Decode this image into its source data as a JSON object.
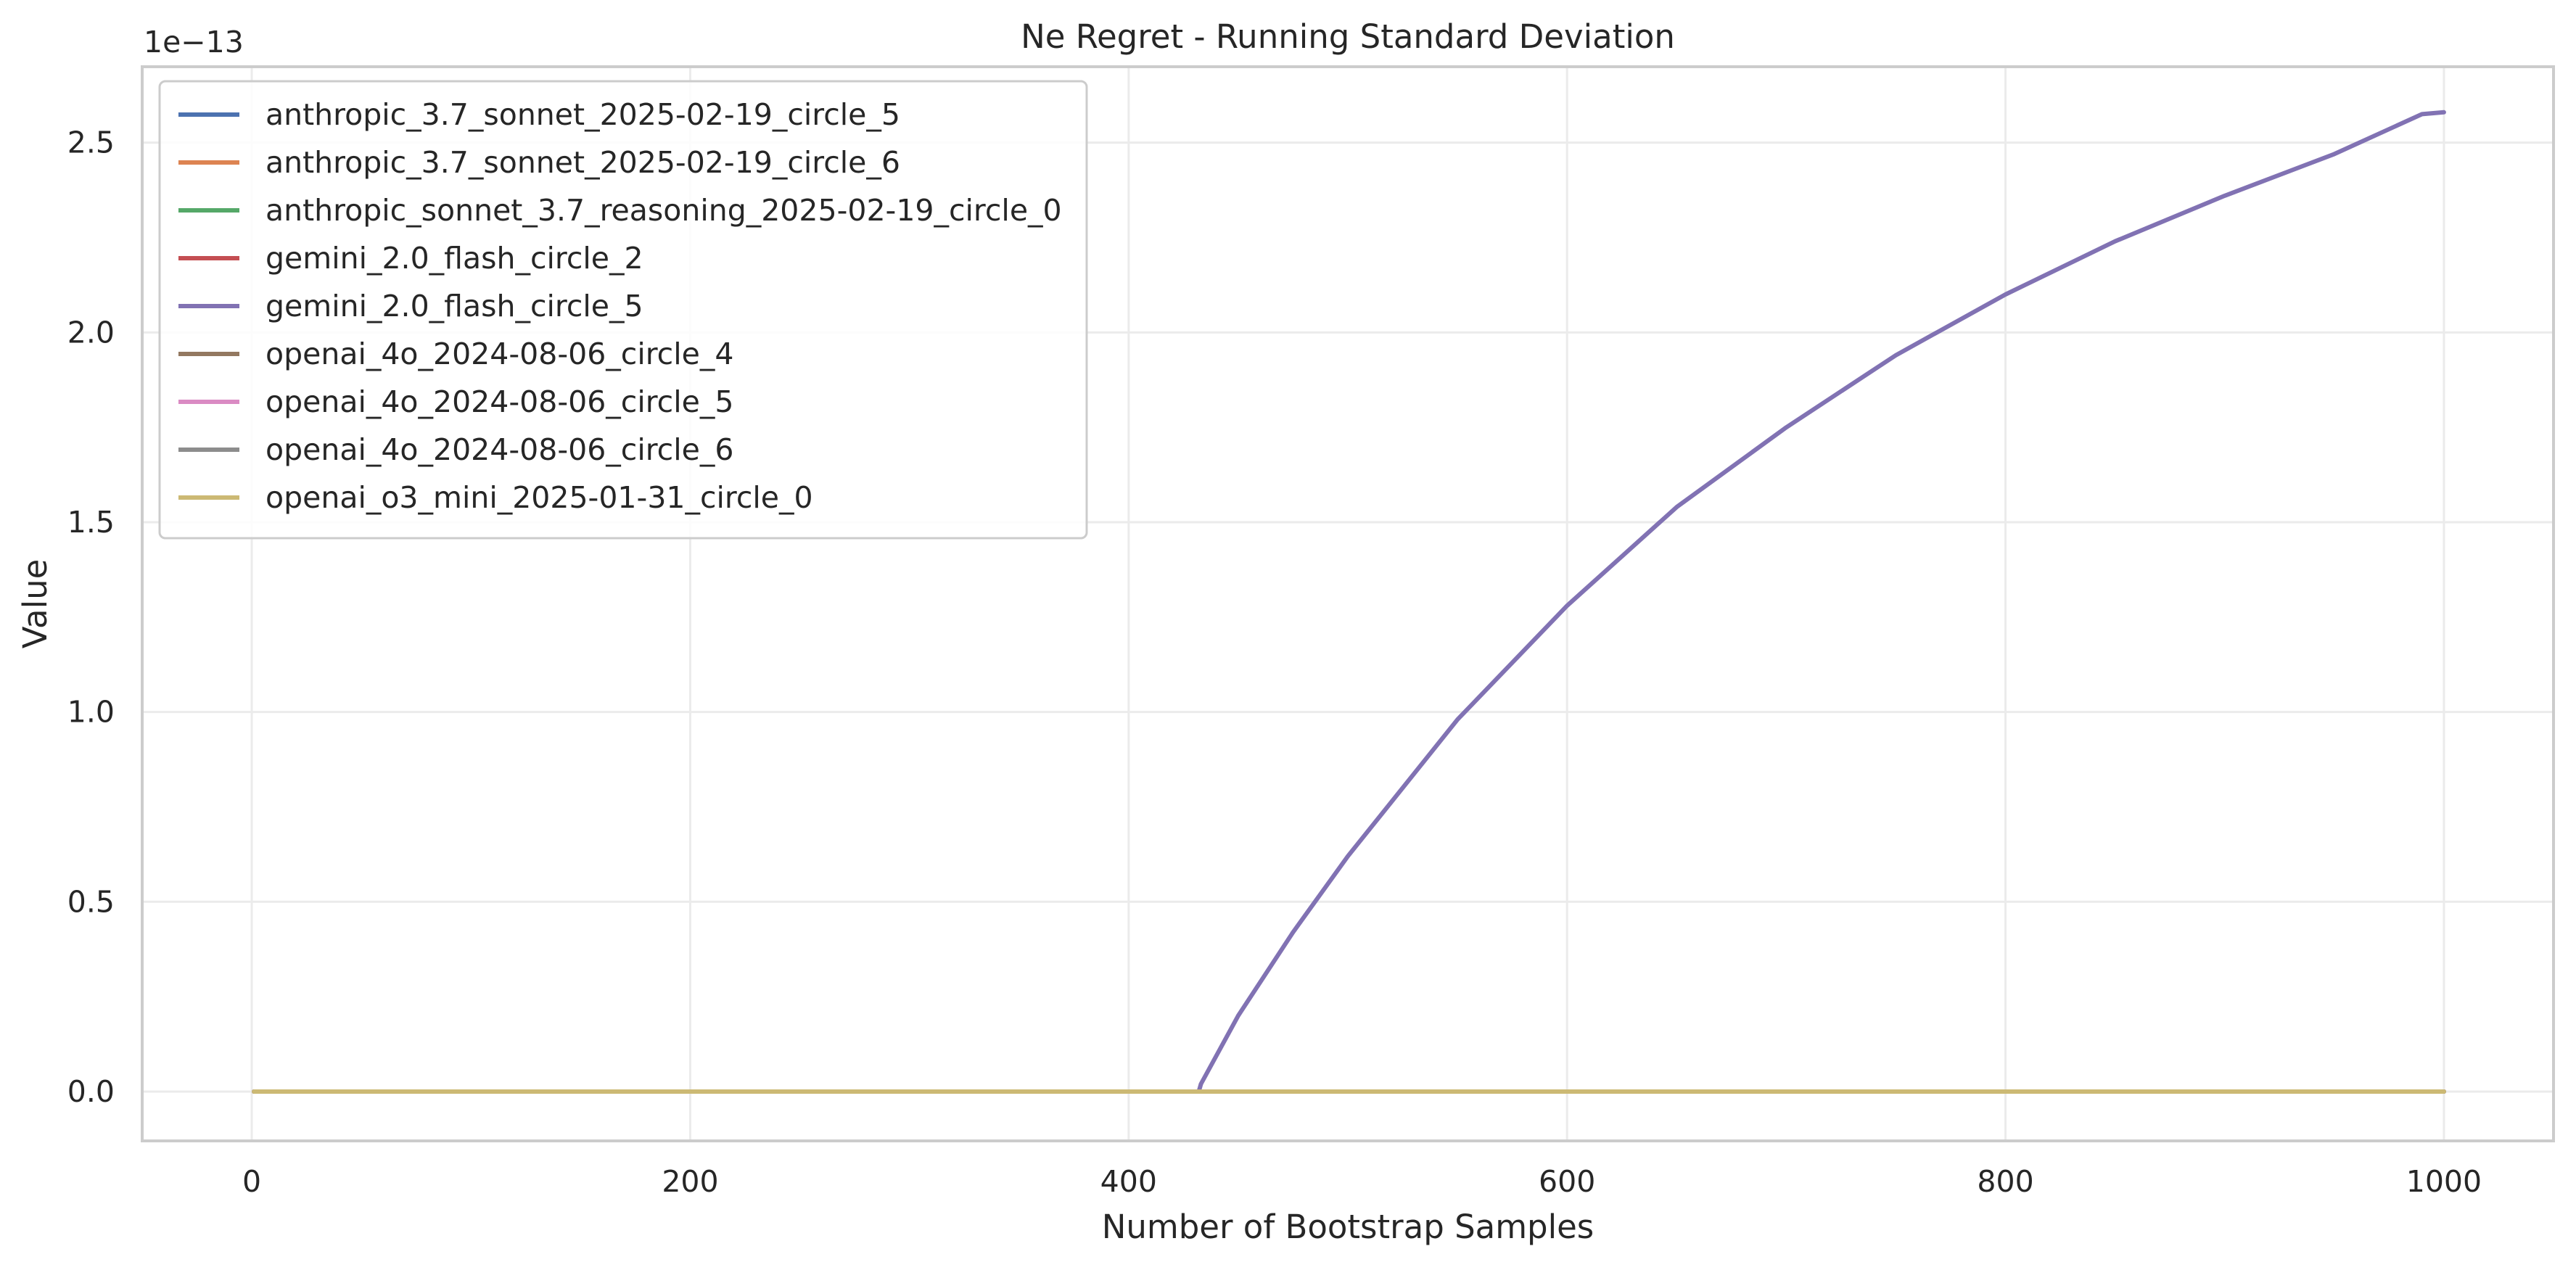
{
  "chart_data": {
    "type": "line",
    "title": "Ne Regret - Running Standard Deviation",
    "xlabel": "Number of Bootstrap Samples",
    "ylabel": "Value",
    "y_offset_label": "1e−13",
    "xlim": [
      -50,
      1050
    ],
    "ylim": [
      -0.13,
      2.7
    ],
    "x_ticks": [
      0,
      200,
      400,
      600,
      800,
      1000
    ],
    "x_tick_labels": [
      "0",
      "200",
      "400",
      "600",
      "800",
      "1000"
    ],
    "y_ticks": [
      0,
      0.5,
      1.0,
      1.5,
      2.0,
      2.5
    ],
    "y_tick_labels": [
      "0.0",
      "0.5",
      "1.0",
      "1.5",
      "2.0",
      "2.5"
    ],
    "grid": true,
    "legend_position": "top-left",
    "series": [
      {
        "name": "anthropic_3.7_sonnet_2025-02-19_circle_5",
        "color": "#4c72b0",
        "x": [
          1,
          1000
        ],
        "y": [
          0,
          0
        ]
      },
      {
        "name": "anthropic_3.7_sonnet_2025-02-19_circle_6",
        "color": "#dd8452",
        "x": [
          1,
          1000
        ],
        "y": [
          0,
          0
        ]
      },
      {
        "name": "anthropic_sonnet_3.7_reasoning_2025-02-19_circle_0",
        "color": "#55a868",
        "x": [
          1,
          1000
        ],
        "y": [
          0,
          0
        ]
      },
      {
        "name": "gemini_2.0_flash_circle_2",
        "color": "#c44e52",
        "x": [
          1,
          1000
        ],
        "y": [
          0,
          0
        ]
      },
      {
        "name": "gemini_2.0_flash_circle_5",
        "color": "#8172b3",
        "x": [
          1,
          432,
          433,
          450,
          475,
          500,
          550,
          600,
          650,
          700,
          750,
          800,
          850,
          900,
          950,
          990,
          1000
        ],
        "y": [
          0,
          0,
          0.02,
          0.2,
          0.42,
          0.62,
          0.98,
          1.28,
          1.54,
          1.75,
          1.94,
          2.1,
          2.24,
          2.36,
          2.47,
          2.575,
          2.58
        ]
      },
      {
        "name": "openai_4o_2024-08-06_circle_4",
        "color": "#937860",
        "x": [
          1,
          1000
        ],
        "y": [
          0,
          0
        ]
      },
      {
        "name": "openai_4o_2024-08-06_circle_5",
        "color": "#da8bc3",
        "x": [
          1,
          1000
        ],
        "y": [
          0,
          0
        ]
      },
      {
        "name": "openai_4o_2024-08-06_circle_6",
        "color": "#8c8c8c",
        "x": [
          1,
          1000
        ],
        "y": [
          0,
          0
        ]
      },
      {
        "name": "openai_o3_mini_2025-01-31_circle_0",
        "color": "#ccb974",
        "x": [
          1,
          1000
        ],
        "y": [
          0,
          0
        ]
      }
    ]
  }
}
